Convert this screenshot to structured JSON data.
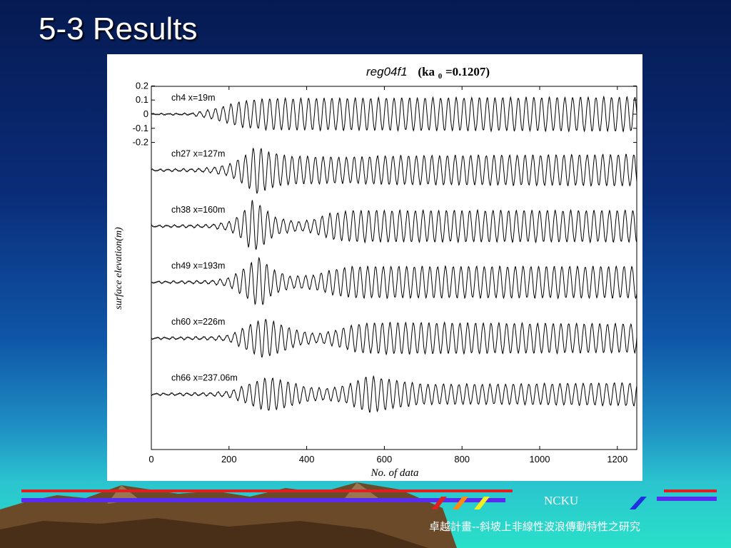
{
  "slide": {
    "title": "5-3 Results",
    "brand": "NCKU",
    "project": "卓越計畫--斜坡上非線性波浪傳動特性之研究",
    "colors": {
      "bg_top": "#061a52",
      "bg_bottom": "#29e0c8",
      "stripe_red": "#e02020",
      "stripe_blue": "#5a2cf0"
    }
  },
  "chart_data": {
    "type": "line",
    "title_italic": "reg04f1",
    "title_param_prefix": "(ka",
    "title_param_sub": "0",
    "title_param_suffix": "=0.1207)",
    "xlabel": "No. of data",
    "ylabel": "surface elevation(m)",
    "xlim": [
      0,
      1250
    ],
    "x_ticks": [
      0,
      200,
      400,
      600,
      800,
      1000,
      1200
    ],
    "y_ticks": [
      0.2,
      0.1,
      0,
      -0.1,
      -0.2
    ],
    "y_scale_note": "tick labels apply to first trace; traces offset vertically",
    "grid": false,
    "wave_period_samples": 20,
    "series": [
      {
        "name": "ch4 x=19m",
        "envelope": [
          [
            0,
            0.003
          ],
          [
            100,
            0.005
          ],
          [
            150,
            0.03
          ],
          [
            180,
            0.05
          ],
          [
            230,
            0.09
          ],
          [
            300,
            0.11
          ],
          [
            1250,
            0.12
          ]
        ]
      },
      {
        "name": "ch27 x=127m",
        "envelope": [
          [
            0,
            0.005
          ],
          [
            120,
            0.01
          ],
          [
            160,
            0.02
          ],
          [
            200,
            0.04
          ],
          [
            240,
            0.1
          ],
          [
            270,
            0.17
          ],
          [
            300,
            0.13
          ],
          [
            350,
            0.1
          ],
          [
            500,
            0.09
          ],
          [
            600,
            0.1
          ],
          [
            1250,
            0.11
          ]
        ]
      },
      {
        "name": "ch38 x=160m",
        "envelope": [
          [
            0,
            0.005
          ],
          [
            150,
            0.01
          ],
          [
            200,
            0.03
          ],
          [
            230,
            0.08
          ],
          [
            260,
            0.18
          ],
          [
            280,
            0.15
          ],
          [
            320,
            0.06
          ],
          [
            380,
            0.03
          ],
          [
            420,
            0.05
          ],
          [
            460,
            0.09
          ],
          [
            520,
            0.11
          ],
          [
            1250,
            0.11
          ]
        ]
      },
      {
        "name": "ch49 x=193m",
        "envelope": [
          [
            0,
            0.005
          ],
          [
            150,
            0.01
          ],
          [
            200,
            0.03
          ],
          [
            240,
            0.1
          ],
          [
            280,
            0.18
          ],
          [
            310,
            0.09
          ],
          [
            360,
            0.04
          ],
          [
            420,
            0.05
          ],
          [
            470,
            0.09
          ],
          [
            520,
            0.11
          ],
          [
            1250,
            0.11
          ]
        ]
      },
      {
        "name": "ch60 x=226m",
        "envelope": [
          [
            0,
            0.005
          ],
          [
            150,
            0.01
          ],
          [
            200,
            0.02
          ],
          [
            250,
            0.09
          ],
          [
            290,
            0.14
          ],
          [
            330,
            0.1
          ],
          [
            380,
            0.05
          ],
          [
            430,
            0.03
          ],
          [
            480,
            0.06
          ],
          [
            530,
            0.1
          ],
          [
            600,
            0.11
          ],
          [
            1250,
            0.1
          ]
        ]
      },
      {
        "name": "ch66 x=237.06m",
        "envelope": [
          [
            0,
            0.005
          ],
          [
            150,
            0.01
          ],
          [
            200,
            0.02
          ],
          [
            260,
            0.08
          ],
          [
            300,
            0.12
          ],
          [
            350,
            0.09
          ],
          [
            400,
            0.05
          ],
          [
            450,
            0.04
          ],
          [
            500,
            0.06
          ],
          [
            560,
            0.13
          ],
          [
            620,
            0.1
          ],
          [
            700,
            0.07
          ],
          [
            900,
            0.07
          ],
          [
            1250,
            0.08
          ]
        ]
      }
    ]
  }
}
